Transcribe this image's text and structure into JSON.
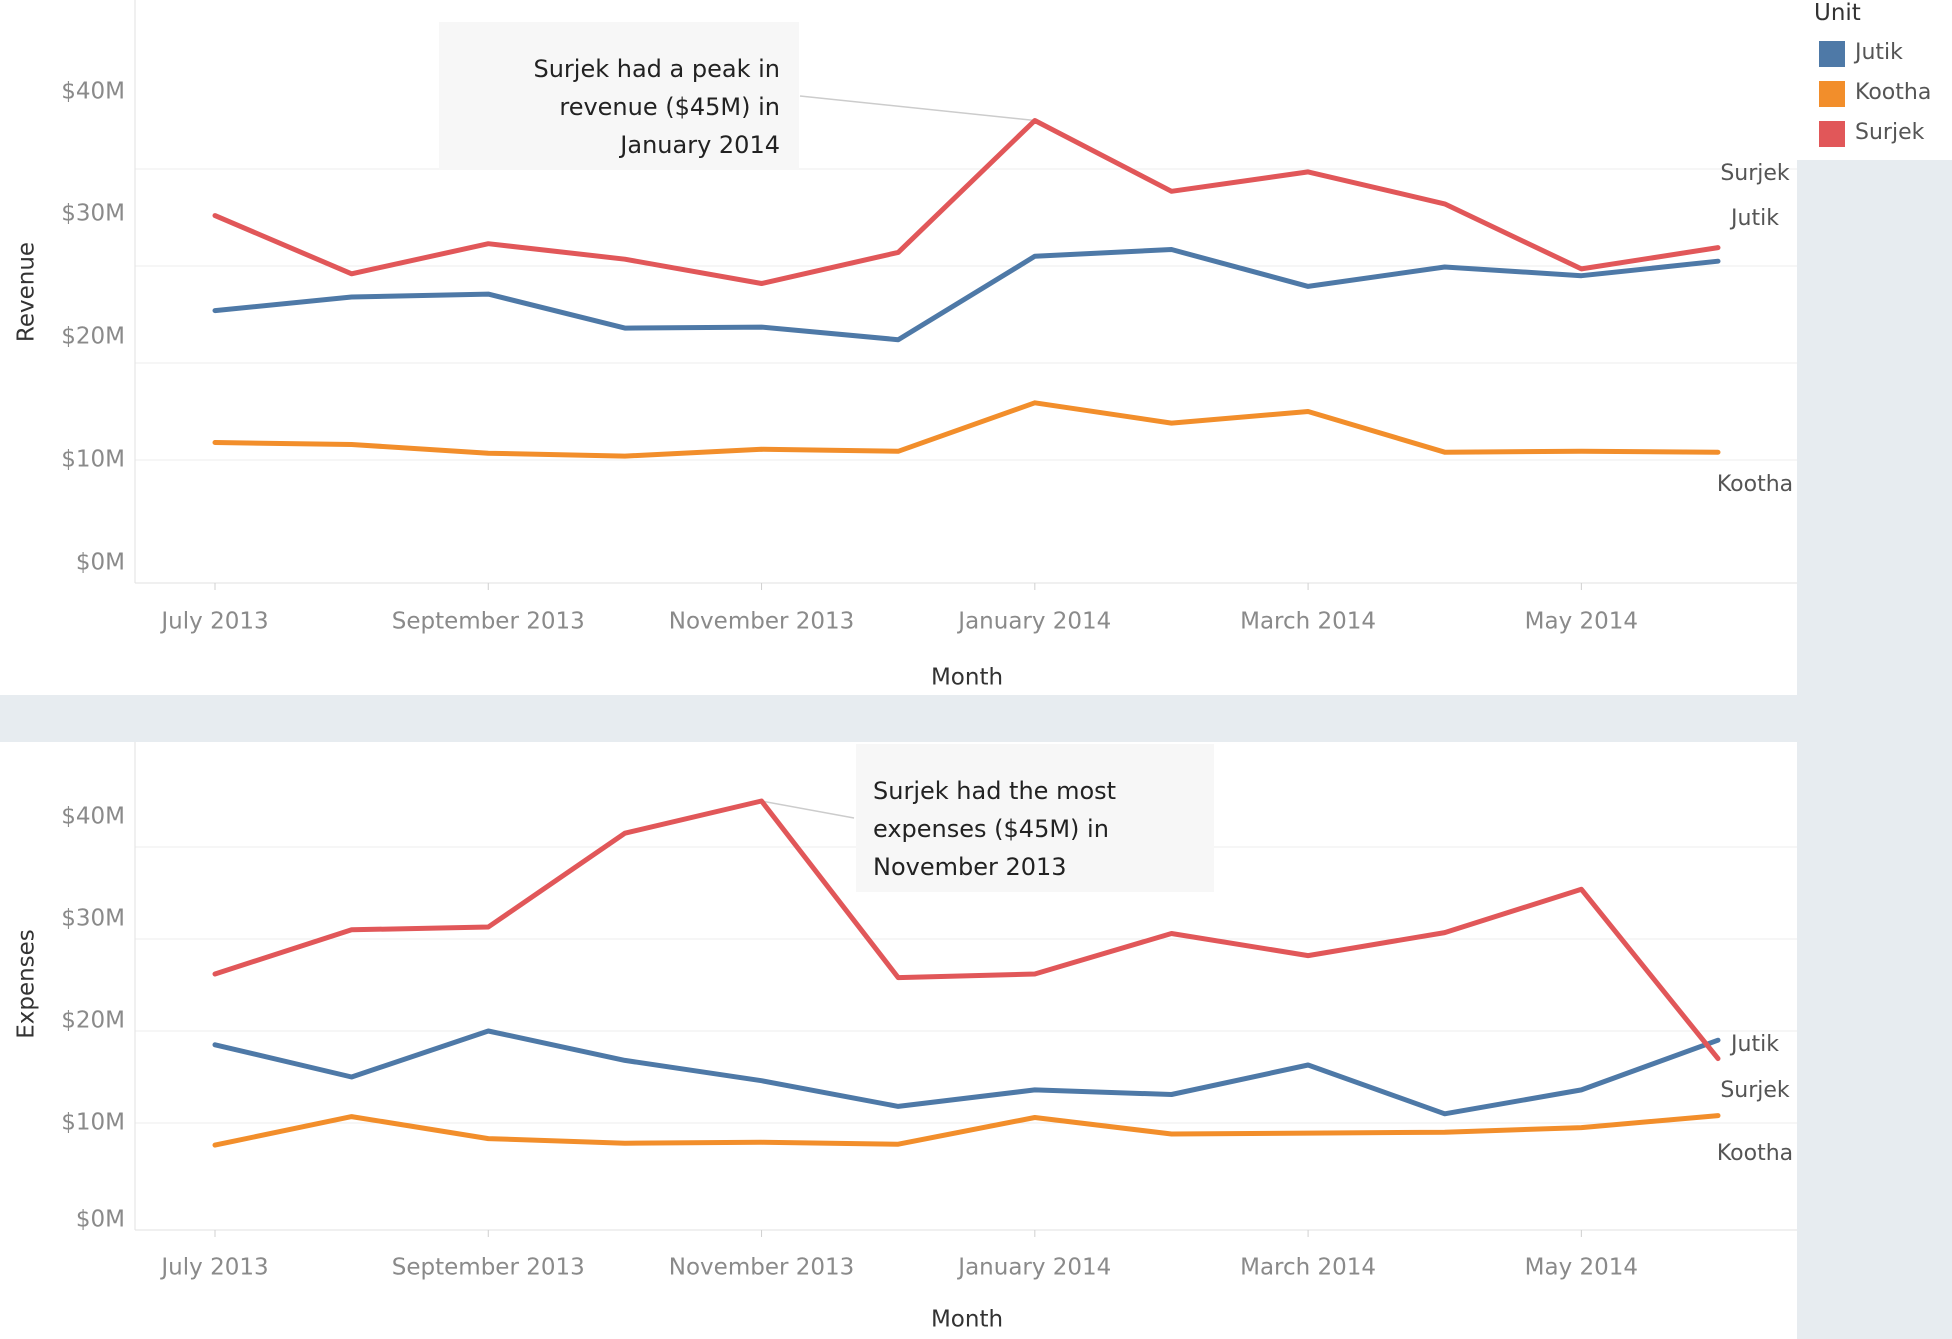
{
  "legend": {
    "title": "Unit",
    "items": [
      {
        "label": "Jutik",
        "color": "#4e79a7"
      },
      {
        "label": "Kootha",
        "color": "#f28e2b"
      },
      {
        "label": "Surjek",
        "color": "#e15759"
      }
    ]
  },
  "chart_data": [
    {
      "type": "line",
      "xlabel": "Month",
      "ylabel": "Revenue",
      "x": [
        "July 2013",
        "August 2013",
        "September 2013",
        "October 2013",
        "November 2013",
        "December 2013",
        "January 2014",
        "February 2014",
        "March 2014",
        "April 2014",
        "May 2014",
        "June 2014"
      ],
      "x_tick_labels": [
        "July 2013",
        "September 2013",
        "November 2013",
        "January 2014",
        "March 2014",
        "May 2014"
      ],
      "y_tick_labels": [
        "$0M",
        "$10M",
        "$20M",
        "$30M",
        "$40M"
      ],
      "ylim": [
        0,
        45
      ],
      "grid": true,
      "series": [
        {
          "name": "Jutik",
          "color": "#4e79a7",
          "values": [
            25.4,
            26.8,
            27.1,
            23.6,
            23.7,
            22.4,
            31.0,
            31.7,
            27.9,
            29.9,
            29.0,
            30.5
          ]
        },
        {
          "name": "Kootha",
          "color": "#f28e2b",
          "values": [
            11.8,
            11.6,
            10.7,
            10.4,
            11.1,
            10.9,
            15.9,
            13.8,
            15.0,
            10.8,
            10.9,
            10.8
          ]
        },
        {
          "name": "Surjek",
          "color": "#e15759",
          "values": [
            35.2,
            29.2,
            32.3,
            30.7,
            28.2,
            31.4,
            45.0,
            37.7,
            39.7,
            36.4,
            29.7,
            31.9
          ]
        }
      ],
      "annotation": {
        "text": [
          "Surjek had a peak in",
          "revenue ($45M) in",
          "January 2014"
        ],
        "target_index": 6,
        "target_series": "Surjek"
      }
    },
    {
      "type": "line",
      "xlabel": "Month",
      "ylabel": "Expenses",
      "x": [
        "July 2013",
        "August 2013",
        "September 2013",
        "October 2013",
        "November 2013",
        "December 2013",
        "January 2014",
        "February 2014",
        "March 2014",
        "April 2014",
        "May 2014",
        "June 2014"
      ],
      "x_tick_labels": [
        "July 2013",
        "September 2013",
        "November 2013",
        "January 2014",
        "March 2014",
        "May 2014"
      ],
      "y_tick_labels": [
        "$0M",
        "$10M",
        "$20M",
        "$30M",
        "$40M"
      ],
      "ylim": [
        0,
        45
      ],
      "grid": true,
      "series": [
        {
          "name": "Jutik",
          "color": "#4e79a7",
          "values": [
            18.5,
            15.0,
            20.0,
            16.8,
            14.6,
            11.8,
            13.6,
            13.1,
            16.3,
            11.0,
            13.6,
            19.0
          ]
        },
        {
          "name": "Kootha",
          "color": "#f28e2b",
          "values": [
            7.6,
            10.7,
            8.3,
            7.8,
            7.9,
            7.7,
            10.6,
            8.8,
            8.9,
            9.0,
            9.5,
            10.8
          ]
        },
        {
          "name": "Surjek",
          "color": "#e15759",
          "values": [
            26.2,
            31.0,
            31.3,
            41.5,
            45.0,
            25.8,
            26.2,
            30.6,
            28.2,
            30.7,
            35.4,
            17.0
          ]
        }
      ],
      "annotation": {
        "text": [
          "Surjek had the most",
          "expenses ($45M) in",
          "November 2013"
        ],
        "target_index": 4,
        "target_series": "Surjek"
      }
    }
  ]
}
